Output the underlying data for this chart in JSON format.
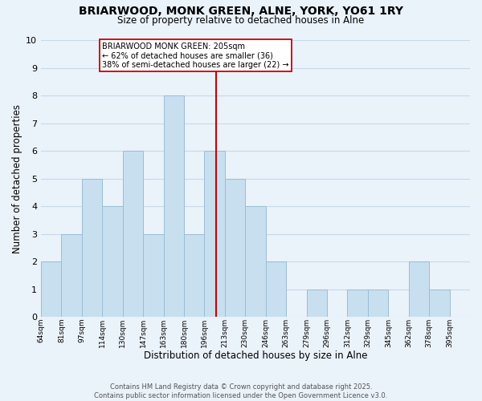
{
  "title": "BRIARWOOD, MONK GREEN, ALNE, YORK, YO61 1RY",
  "subtitle": "Size of property relative to detached houses in Alne",
  "xlabel": "Distribution of detached houses by size in Alne",
  "ylabel": "Number of detached properties",
  "bin_labels": [
    "64sqm",
    "81sqm",
    "97sqm",
    "114sqm",
    "130sqm",
    "147sqm",
    "163sqm",
    "180sqm",
    "196sqm",
    "213sqm",
    "230sqm",
    "246sqm",
    "263sqm",
    "279sqm",
    "296sqm",
    "312sqm",
    "329sqm",
    "345sqm",
    "362sqm",
    "378sqm",
    "395sqm"
  ],
  "counts": [
    2,
    3,
    5,
    4,
    6,
    3,
    8,
    3,
    6,
    5,
    4,
    2,
    0,
    1,
    0,
    1,
    1,
    0,
    2,
    1,
    0
  ],
  "bar_color": "#c8dff0",
  "bar_edgecolor": "#9bbdd4",
  "grid_color": "#c8d8e8",
  "property_line_index": 8.56,
  "property_line_color": "#cc0000",
  "annotation_text": "BRIARWOOD MONK GREEN: 205sqm\n← 62% of detached houses are smaller (36)\n38% of semi-detached houses are larger (22) →",
  "annotation_box_edgecolor": "#cc0000",
  "annotation_box_facecolor": "#ffffff",
  "ylim": [
    0,
    10
  ],
  "yticks": [
    0,
    1,
    2,
    3,
    4,
    5,
    6,
    7,
    8,
    9,
    10
  ],
  "footnote": "Contains HM Land Registry data © Crown copyright and database right 2025.\nContains public sector information licensed under the Open Government Licence v3.0.",
  "background_color": "#eaf2fa",
  "plot_background_color": "#eaf2fa",
  "title_fontsize": 10,
  "subtitle_fontsize": 8.5
}
